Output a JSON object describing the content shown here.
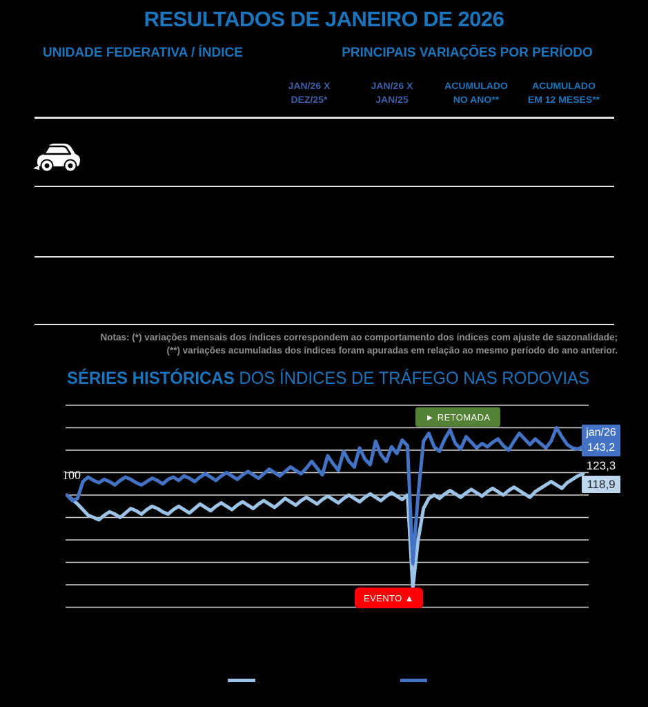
{
  "title": {
    "prefix": "RESULTADOS DE ",
    "highlight": "JANEIRO DE 2026"
  },
  "table": {
    "left_header": "UNIDADE FEDERATIVA / ÍNDICE",
    "right_header": "PRINCIPAIS VARIAÇÕES POR PERÍODO",
    "columns": [
      {
        "label": "JAN/26 X\nDEZ/25*"
      },
      {
        "label": "JAN/26 X\nJAN/25"
      },
      {
        "label": "ACUMULADO\nNO ANO**"
      },
      {
        "label": "ACUMULADO\nEM 12 MESES**"
      }
    ],
    "rows": [
      {
        "icon": "car-icon"
      },
      {},
      {}
    ]
  },
  "notes": {
    "line1": "Notas: (*) variações mensais dos índices correspondem ao comportamento dos índices com ajuste de sazonalidade;",
    "line2": "(**) variações acumuladas dos índices foram apuradas em relação ao mesmo período do ano anterior."
  },
  "chart_section": {
    "title_bold": "SÉRIES HISTÓRICAS",
    "title_rest": " DOS ÍNDICES DE TRÁFEGO NAS RODOVIAS"
  },
  "chart_data": {
    "type": "line",
    "title": "SÉRIES HISTÓRICAS DOS ÍNDICES DE TRÁFEGO NAS RODOVIAS",
    "grid": true,
    "ylim": [
      0,
      180
    ],
    "gridline_step": 20,
    "gridline_color": "#CFCFCF",
    "baseline_label": "100",
    "x_axis_labels_visible": false,
    "series": [
      {
        "name": "indice-claro",
        "color": "#9DC3E6",
        "end_label": "118,9",
        "end_label_bg": "#BDD7EE",
        "values": [
          100,
          96,
          92,
          87,
          82,
          80,
          78,
          82,
          85,
          83,
          80,
          84,
          88,
          86,
          83,
          87,
          90,
          88,
          85,
          83,
          87,
          90,
          87,
          84,
          88,
          92,
          89,
          86,
          90,
          93,
          90,
          87,
          91,
          94,
          91,
          88,
          92,
          95,
          92,
          89,
          93,
          97,
          94,
          91,
          95,
          98,
          95,
          92,
          96,
          99,
          96,
          93,
          97,
          100,
          97,
          94,
          98,
          101,
          98,
          95,
          99,
          102,
          99,
          96,
          100,
          17,
          60,
          88,
          97,
          100,
          97,
          101,
          104,
          101,
          98,
          102,
          105,
          102,
          99,
          103,
          106,
          103,
          100,
          104,
          107,
          104,
          101,
          98,
          103,
          106,
          109,
          112,
          109,
          106,
          111,
          114,
          117,
          118.9
        ]
      },
      {
        "name": "indice-escuro",
        "color": "#4472C4",
        "end_label": "143,2",
        "end_label_period": "jan/26",
        "end_label_bg": "#4472C4",
        "values": [
          100,
          95,
          97,
          112,
          116,
          113,
          111,
          114,
          112,
          109,
          113,
          116,
          114,
          111,
          109,
          112,
          115,
          113,
          110,
          114,
          116,
          113,
          117,
          115,
          112,
          116,
          119,
          116,
          113,
          117,
          120,
          117,
          114,
          118,
          121,
          118,
          115,
          119,
          123,
          120,
          117,
          121,
          125,
          122,
          119,
          124,
          130,
          124,
          118,
          135,
          128,
          122,
          139,
          130,
          125,
          142,
          132,
          127,
          148,
          136,
          130,
          143,
          137,
          149,
          144,
          39,
          100,
          148,
          155,
          143,
          139,
          150,
          158,
          146,
          141,
          152,
          147,
          142,
          146,
          143,
          147,
          150,
          144,
          140,
          148,
          155,
          150,
          145,
          150,
          146,
          142,
          148,
          160,
          152,
          145,
          142,
          141,
          143.2
        ]
      },
      {
        "name": "serie-intermediaria",
        "color": null,
        "end_label": "123,3",
        "end_label_bg": null,
        "values": []
      }
    ],
    "annotations": [
      {
        "id": "retomada",
        "text": "► RETOMADA",
        "color": "#538135"
      },
      {
        "id": "evento",
        "text": "EVENTO ▲",
        "color": "#FB0007"
      }
    ],
    "legend_position": "bottom"
  }
}
